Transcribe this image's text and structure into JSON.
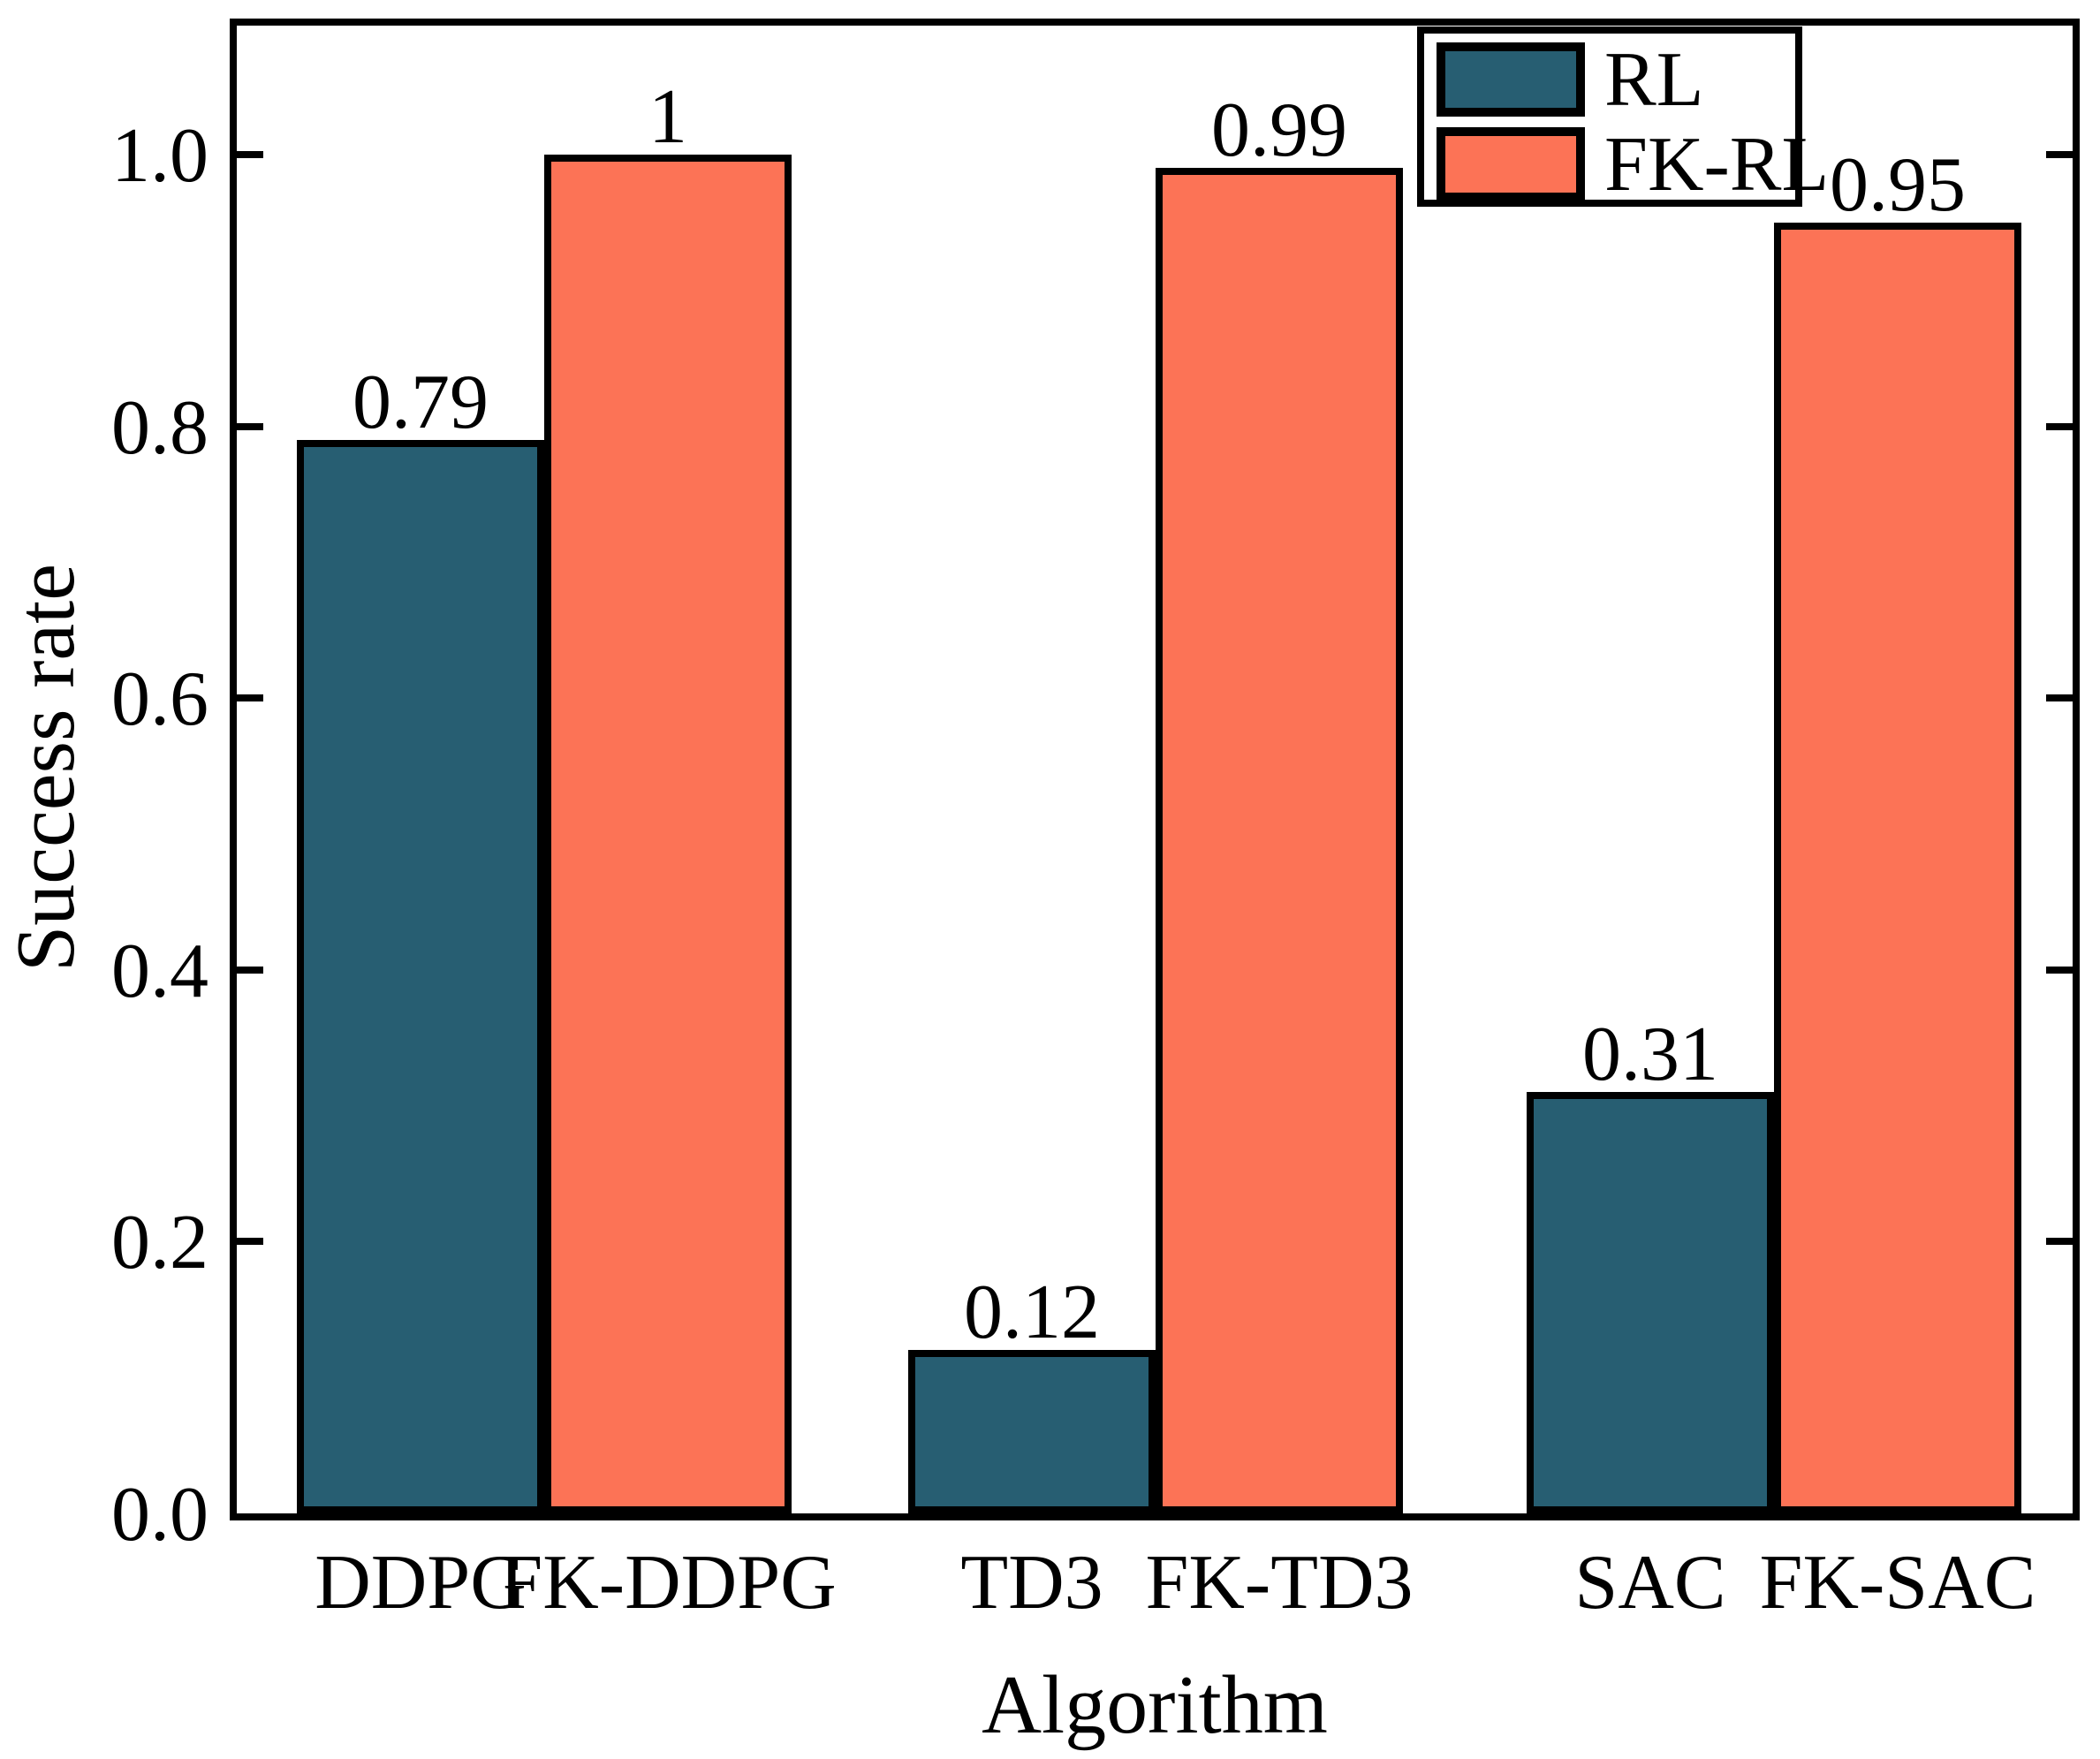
{
  "chart_data": {
    "type": "bar",
    "title": "",
    "xlabel": "Algorithm",
    "ylabel": "Success rate",
    "categories": [
      "DDPG",
      "TD3",
      "SAC"
    ],
    "series": [
      {
        "name": "RL",
        "color": "#275e72",
        "values": [
          0.79,
          0.12,
          0.31
        ],
        "value_labels": [
          "0.79",
          "0.12",
          "0.31"
        ],
        "bar_tick_labels": [
          "DDPG",
          "TD3",
          "SAC"
        ]
      },
      {
        "name": "FK-RL",
        "color": "#fc7356",
        "values": [
          1,
          0.99,
          0.95
        ],
        "value_labels": [
          "1",
          "0.99",
          "0.95"
        ],
        "bar_tick_labels": [
          "FK-DDPG",
          "FK-TD3",
          "FK-SAC"
        ]
      }
    ],
    "x_tick_labels": [
      "DDPG",
      "FK-DDPG",
      "TD3",
      "FK-TD3",
      "SAC",
      "FK-SAC"
    ],
    "y_ticks": [
      0.0,
      0.2,
      0.4,
      0.6,
      0.8,
      1.0
    ],
    "y_tick_labels": [
      "0.0",
      "0.2",
      "0.4",
      "0.6",
      "0.8",
      "1.0"
    ],
    "ylim": [
      0,
      1.1
    ],
    "xlim": [
      -0.5,
      2.5
    ],
    "bar_width": 0.4,
    "grid": false,
    "bar_edge_color": "#000000",
    "legend": {
      "position": "upper right",
      "entries": [
        "RL",
        "FK-RL"
      ]
    }
  },
  "colors": {
    "rl_bar": "#275e72",
    "fk_rl_bar": "#fc7356",
    "edge": "#000000",
    "background": "#ffffff",
    "text": "#000000"
  }
}
